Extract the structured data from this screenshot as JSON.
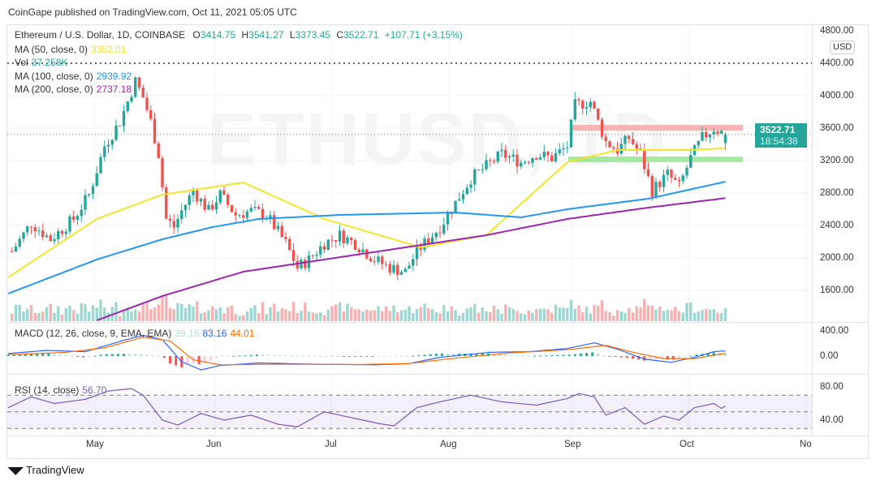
{
  "header": {
    "published": "CoinGape published on TradingView.com, Oct 11, 2021 05:05 UTC"
  },
  "legend": {
    "symbol": "Ethereum / U.S. Dollar, 1D, COINBASE",
    "o_label": "O",
    "o": "3414.75",
    "h_label": "H",
    "h": "3541.27",
    "l_label": "L",
    "l": "3373.45",
    "c_label": "C",
    "c": "3522.71",
    "change": "+107.71 (+3.15%)",
    "ma50_label": "MA (50, close, 0)",
    "ma50": "3352.01",
    "vol_label": "Vol",
    "vol": "37.258K",
    "ma100_label": "MA (100, close, 0)",
    "ma100": "2939.92",
    "ma200_label": "MA (200, close, 0)",
    "ma200": "2737.18",
    "macd_label": "MACD (12, 26, close, 9, EMA, EMA)",
    "macd_hist": "39.15",
    "macd": "83.16",
    "macd_signal": "44.01",
    "rsi_label": "RSI (14, close)",
    "rsi": "56.70"
  },
  "watermark": "ETHUSD, 1D",
  "price_tag": {
    "price": "3522.71",
    "countdown": "18:54:38"
  },
  "currency": "USD",
  "footer": {
    "brand": "TradingView"
  },
  "colors": {
    "up": "#26a69a",
    "down": "#ef5350",
    "ma50": "#f5e52a",
    "ma100": "#2196f3",
    "ma200": "#9c27b0",
    "macd": "#2962ff",
    "signal": "#ff6d00",
    "rsi": "#7e57c2"
  },
  "chart_data": {
    "type": "candlestick",
    "start_date": "2021-04-08",
    "price_axis": {
      "ticks": [
        "4800.00",
        "4400.00",
        "4000.00",
        "3600.00",
        "3200.00",
        "2800.00",
        "2400.00",
        "2000.00",
        "1600.00"
      ],
      "range": [
        1200,
        4900
      ]
    },
    "time_axis": {
      "ticks": [
        "May",
        "Jun",
        "Jul",
        "Aug",
        "Sep",
        "Oct",
        "No"
      ]
    },
    "close_anchors": [
      [
        1,
        2080
      ],
      [
        6,
        2430
      ],
      [
        11,
        2230
      ],
      [
        17,
        2480
      ],
      [
        21,
        2780
      ],
      [
        25,
        3380
      ],
      [
        29,
        3680
      ],
      [
        33,
        4180
      ],
      [
        35,
        3980
      ],
      [
        37,
        3680
      ],
      [
        39,
        3280
      ],
      [
        41,
        2480
      ],
      [
        43,
        2380
      ],
      [
        45,
        2580
      ],
      [
        48,
        2830
      ],
      [
        52,
        2580
      ],
      [
        55,
        2780
      ],
      [
        59,
        2530
      ],
      [
        63,
        2580
      ],
      [
        67,
        2530
      ],
      [
        72,
        2180
      ],
      [
        75,
        1880
      ],
      [
        78,
        1980
      ],
      [
        82,
        2180
      ],
      [
        86,
        2280
      ],
      [
        90,
        2180
      ],
      [
        95,
        1980
      ],
      [
        99,
        1880
      ],
      [
        103,
        1830
      ],
      [
        106,
        2080
      ],
      [
        112,
        2380
      ],
      [
        116,
        2680
      ],
      [
        120,
        2980
      ],
      [
        124,
        3130
      ],
      [
        128,
        3280
      ],
      [
        133,
        3180
      ],
      [
        137,
        3280
      ],
      [
        141,
        3230
      ],
      [
        145,
        3380
      ],
      [
        147,
        3880
      ],
      [
        151,
        3930
      ],
      [
        155,
        3430
      ],
      [
        158,
        3330
      ],
      [
        161,
        3480
      ],
      [
        164,
        3280
      ],
      [
        167,
        2830
      ],
      [
        171,
        3030
      ],
      [
        174,
        2880
      ],
      [
        177,
        3230
      ],
      [
        180,
        3480
      ],
      [
        183,
        3600
      ],
      [
        186,
        3522
      ]
    ],
    "ma50": [
      [
        0,
        1760
      ],
      [
        23,
        2480
      ],
      [
        40,
        2780
      ],
      [
        61,
        2930
      ],
      [
        82,
        2480
      ],
      [
        107,
        2130
      ],
      [
        124,
        2280
      ],
      [
        145,
        3180
      ],
      [
        158,
        3330
      ],
      [
        177,
        3330
      ],
      [
        186,
        3352
      ]
    ],
    "ma100": [
      [
        0,
        1560
      ],
      [
        23,
        1980
      ],
      [
        40,
        2230
      ],
      [
        53,
        2380
      ],
      [
        65,
        2480
      ],
      [
        86,
        2530
      ],
      [
        116,
        2560
      ],
      [
        133,
        2500
      ],
      [
        145,
        2600
      ],
      [
        166,
        2730
      ],
      [
        186,
        2940
      ]
    ],
    "ma200": [
      [
        23,
        1230
      ],
      [
        40,
        1530
      ],
      [
        61,
        1830
      ],
      [
        82,
        1980
      ],
      [
        103,
        2130
      ],
      [
        124,
        2280
      ],
      [
        145,
        2480
      ],
      [
        166,
        2620
      ],
      [
        186,
        2737
      ]
    ],
    "levels": {
      "ath_line": 4400,
      "resistance_zone": [
        3600,
        3640
      ],
      "support_zone": [
        3200,
        3250
      ]
    },
    "macd_axis": {
      "ticks": [
        "400.00",
        "0.00"
      ]
    },
    "macd_line": [
      [
        0,
        40
      ],
      [
        10,
        90
      ],
      [
        20,
        70
      ],
      [
        30,
        250
      ],
      [
        35,
        330
      ],
      [
        40,
        260
      ],
      [
        45,
        -90
      ],
      [
        50,
        -220
      ],
      [
        55,
        -150
      ],
      [
        65,
        -110
      ],
      [
        80,
        -130
      ],
      [
        95,
        -140
      ],
      [
        104,
        -120
      ],
      [
        112,
        -20
      ],
      [
        125,
        60
      ],
      [
        135,
        70
      ],
      [
        145,
        120
      ],
      [
        152,
        210
      ],
      [
        158,
        110
      ],
      [
        165,
        -50
      ],
      [
        172,
        -100
      ],
      [
        178,
        -20
      ],
      [
        183,
        70
      ],
      [
        186,
        83
      ]
    ],
    "signal_line": [
      [
        0,
        20
      ],
      [
        15,
        60
      ],
      [
        25,
        130
      ],
      [
        35,
        300
      ],
      [
        42,
        240
      ],
      [
        48,
        -60
      ],
      [
        55,
        -140
      ],
      [
        70,
        -130
      ],
      [
        90,
        -135
      ],
      [
        104,
        -120
      ],
      [
        115,
        -40
      ],
      [
        130,
        50
      ],
      [
        145,
        100
      ],
      [
        155,
        170
      ],
      [
        162,
        60
      ],
      [
        170,
        -40
      ],
      [
        178,
        -40
      ],
      [
        186,
        44
      ]
    ],
    "rsi_axis": {
      "ticks": [
        "80.00",
        "40.00"
      ],
      "band": [
        30,
        70
      ]
    },
    "rsi_line": [
      [
        0,
        55
      ],
      [
        6,
        68
      ],
      [
        12,
        60
      ],
      [
        20,
        65
      ],
      [
        26,
        75
      ],
      [
        32,
        78
      ],
      [
        35,
        70
      ],
      [
        40,
        40
      ],
      [
        44,
        34
      ],
      [
        50,
        48
      ],
      [
        56,
        40
      ],
      [
        63,
        46
      ],
      [
        70,
        35
      ],
      [
        75,
        32
      ],
      [
        82,
        50
      ],
      [
        90,
        42
      ],
      [
        96,
        36
      ],
      [
        100,
        33
      ],
      [
        106,
        55
      ],
      [
        112,
        62
      ],
      [
        120,
        70
      ],
      [
        128,
        62
      ],
      [
        137,
        58
      ],
      [
        145,
        66
      ],
      [
        148,
        72
      ],
      [
        152,
        68
      ],
      [
        155,
        46
      ],
      [
        160,
        55
      ],
      [
        165,
        35
      ],
      [
        170,
        45
      ],
      [
        174,
        40
      ],
      [
        178,
        55
      ],
      [
        183,
        60
      ],
      [
        185,
        54
      ],
      [
        186,
        57
      ]
    ]
  }
}
